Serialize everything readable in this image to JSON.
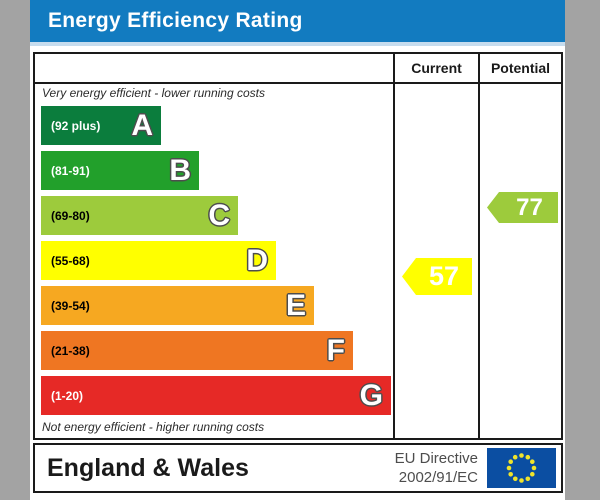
{
  "title": "Energy Efficiency Rating",
  "columns": {
    "current": "Current",
    "potential": "Potential"
  },
  "captions": {
    "top": "Very energy efficient - lower running costs",
    "bottom": "Not energy efficient - higher running costs"
  },
  "bands": [
    {
      "grade": "A",
      "range": "(92 plus)",
      "color": "#0b7d3d",
      "range_text_color": "#ffffff"
    },
    {
      "grade": "B",
      "range": "(81-91)",
      "color": "#22a02b",
      "range_text_color": "#ffffff"
    },
    {
      "grade": "C",
      "range": "(69-80)",
      "color": "#9dcb3c",
      "range_text_color": "#000000"
    },
    {
      "grade": "D",
      "range": "(55-68)",
      "color": "#ffff00",
      "range_text_color": "#000000"
    },
    {
      "grade": "E",
      "range": "(39-54)",
      "color": "#f6a821",
      "range_text_color": "#000000"
    },
    {
      "grade": "F",
      "range": "(21-38)",
      "color": "#ef7622",
      "range_text_color": "#000000"
    },
    {
      "grade": "G",
      "range": "(1-20)",
      "color": "#e62926",
      "range_text_color": "#ffffff"
    }
  ],
  "current": {
    "value": "57",
    "color": "#ffff00",
    "band": "D"
  },
  "potential": {
    "value": "77",
    "color": "#9dcb3c",
    "band": "C"
  },
  "footer": {
    "region": "England & Wales",
    "directive_line1": "EU Directive",
    "directive_line2": "2002/91/EC"
  },
  "colors": {
    "header_blue": "#127bc0",
    "eu_flag_blue": "#0b4ea2",
    "eu_star_yellow": "#f0e42c",
    "page_gray": "#a3a3a3"
  },
  "chart_data": {
    "type": "bar",
    "title": "Energy Efficiency Rating",
    "categories": [
      "A",
      "B",
      "C",
      "D",
      "E",
      "F",
      "G"
    ],
    "band_ranges": [
      "92 plus",
      "81-91",
      "69-80",
      "55-68",
      "39-54",
      "21-38",
      "1-20"
    ],
    "band_colors": [
      "#0b7d3d",
      "#22a02b",
      "#9dcb3c",
      "#ffff00",
      "#f6a821",
      "#ef7622",
      "#e62926"
    ],
    "scale": [
      1,
      100
    ],
    "series": [
      {
        "name": "Current",
        "value": 57,
        "band": "D",
        "color": "#ffff00"
      },
      {
        "name": "Potential",
        "value": 77,
        "band": "C",
        "color": "#9dcb3c"
      }
    ],
    "annotations": [
      "Very energy efficient - lower running costs",
      "Not energy efficient - higher running costs"
    ],
    "legend_position": "top-right-columns",
    "footer": "England & Wales | EU Directive 2002/91/EC"
  }
}
